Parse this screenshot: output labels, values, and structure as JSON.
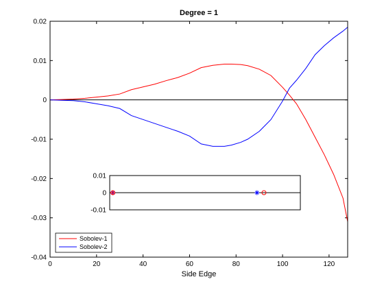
{
  "chart_data": [
    {
      "type": "line",
      "title": "Degree = 1",
      "xlabel": "Side Edge",
      "ylabel": "",
      "xlim": [
        0,
        128
      ],
      "ylim": [
        -0.04,
        0.02
      ],
      "xticks": [
        0,
        20,
        40,
        60,
        80,
        100,
        120
      ],
      "xtick_labels": [
        "0",
        "20",
        "40",
        "60",
        "80",
        "100",
        "120"
      ],
      "yticks": [
        0.02,
        0.01,
        0,
        -0.01,
        -0.02,
        -0.03,
        -0.04
      ],
      "ytick_labels": [
        "0.02",
        "0.01",
        "0",
        "-0.01",
        "-0.02",
        "-0.03",
        "-0.04"
      ],
      "grid": false,
      "legend_position": "bottom-left",
      "reference_line": {
        "y": 0,
        "color": "#000000"
      },
      "series": [
        {
          "name": "Sobolev-1",
          "color": "#ff0000",
          "x": [
            0,
            5,
            10,
            15,
            20,
            25,
            30,
            35,
            40,
            45,
            50,
            55,
            60,
            65,
            70,
            75,
            78,
            82,
            85,
            90,
            95,
            100,
            103,
            106,
            110,
            114,
            118,
            122,
            126,
            128
          ],
          "y": [
            0,
            0.0001,
            0.0002,
            0.0004,
            0.0007,
            0.001,
            0.0015,
            0.0026,
            0.0033,
            0.004,
            0.0049,
            0.0057,
            0.0068,
            0.0082,
            0.0088,
            0.0091,
            0.0091,
            0.009,
            0.0087,
            0.0078,
            0.0062,
            0.0032,
            0.0012,
            -0.001,
            -0.005,
            -0.0095,
            -0.014,
            -0.019,
            -0.025,
            -0.031
          ]
        },
        {
          "name": "Sobolev-2",
          "color": "#0000ff",
          "x": [
            0,
            5,
            10,
            15,
            20,
            25,
            30,
            35,
            40,
            45,
            50,
            55,
            60,
            65,
            70,
            75,
            78,
            82,
            85,
            90,
            95,
            100,
            103,
            106,
            110,
            114,
            118,
            122,
            126,
            128
          ],
          "y": [
            0,
            -0.0001,
            -0.0002,
            -0.0005,
            -0.001,
            -0.0015,
            -0.0022,
            -0.004,
            -0.005,
            -0.006,
            -0.007,
            -0.008,
            -0.0092,
            -0.0112,
            -0.0118,
            -0.0118,
            -0.0115,
            -0.0108,
            -0.01,
            -0.008,
            -0.005,
            -0.0003,
            0.003,
            0.005,
            0.008,
            0.0115,
            0.0138,
            0.0158,
            0.0175,
            0.0185
          ]
        }
      ]
    },
    {
      "type": "scatter",
      "title": "",
      "xlabel": "",
      "ylabel": "",
      "xlim": [
        0,
        128
      ],
      "ylim": [
        -0.01,
        0.01
      ],
      "yticks": [
        0.01,
        0,
        -0.01
      ],
      "ytick_labels": [
        "0.01",
        "0",
        "-0.01"
      ],
      "show_xticks": false,
      "reference_line": {
        "y": 0,
        "color": "#000000"
      },
      "series": [
        {
          "marker": "star",
          "color": "#0000ff",
          "x": [
            27,
            89
          ],
          "y": [
            0,
            0
          ]
        },
        {
          "marker": "circle",
          "color": "#ff0000",
          "x": [
            27,
            92
          ],
          "y": [
            0,
            0
          ]
        },
        {
          "marker": "plus",
          "color": "#ff0000",
          "x": [
            27
          ],
          "y": [
            0
          ]
        }
      ]
    }
  ]
}
